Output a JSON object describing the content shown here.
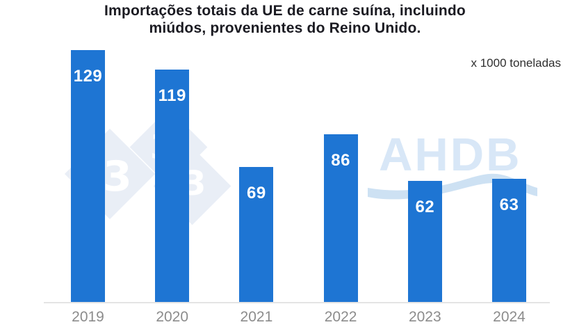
{
  "chart_data": {
    "type": "bar",
    "title": "Importações totais da UE de carne suína, incluindo miúdos, provenientes do Reino Unido.",
    "title_lines": [
      "Importações totais da UE de carne suína, incluindo",
      "miúdos, provenientes do Reino Unido."
    ],
    "unit_label": "x 1000 toneladas",
    "categories": [
      "2019",
      "2020",
      "2021",
      "2022",
      "2023",
      "2024"
    ],
    "values": [
      129,
      119,
      69,
      86,
      62,
      63
    ],
    "xlabel": "",
    "ylabel": "x 1000 toneladas",
    "ylim": [
      0,
      129
    ],
    "grid": false,
    "legend": "none",
    "value_labels_position": "inside-top",
    "bar_color": "#1e75d3",
    "value_label_color": "#ffffff",
    "tick_label_color": "#8c8c8c",
    "axis_line_color": "#e4e4e4",
    "title_color": "#1b1b22"
  },
  "watermarks": {
    "pig333": {
      "glyphs": [
        "3",
        "3",
        "3"
      ],
      "diamond_color": "#e9eef6",
      "glyph_color": "#ffffff"
    },
    "ahdb": {
      "text": "AHDB",
      "text_color": "#d8e7f7",
      "wave_color": "#cde1f3"
    }
  }
}
